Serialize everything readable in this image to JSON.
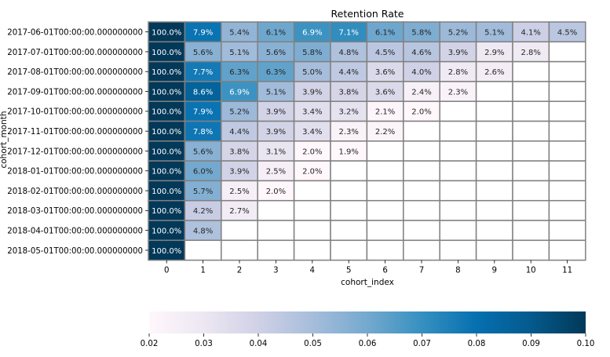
{
  "chart_data": {
    "type": "heatmap",
    "title": "Retention Rate",
    "xlabel": "cohort_index",
    "ylabel": "cohort_month",
    "x": [
      0,
      1,
      2,
      3,
      4,
      5,
      6,
      7,
      8,
      9,
      10,
      11
    ],
    "y": [
      "2017-06-01T00:00:00.000000000",
      "2017-07-01T00:00:00.000000000",
      "2017-08-01T00:00:00.000000000",
      "2017-09-01T00:00:00.000000000",
      "2017-10-01T00:00:00.000000000",
      "2017-11-01T00:00:00.000000000",
      "2017-12-01T00:00:00.000000000",
      "2018-01-01T00:00:00.000000000",
      "2018-02-01T00:00:00.000000000",
      "2018-03-01T00:00:00.000000000",
      "2018-04-01T00:00:00.000000000",
      "2018-05-01T00:00:00.000000000"
    ],
    "values": [
      [
        1.0,
        0.079,
        0.054,
        0.061,
        0.069,
        0.071,
        0.061,
        0.058,
        0.052,
        0.051,
        0.041,
        0.045
      ],
      [
        1.0,
        0.056,
        0.051,
        0.056,
        0.058,
        0.048,
        0.045,
        0.046,
        0.039,
        0.029,
        0.028,
        null
      ],
      [
        1.0,
        0.077,
        0.063,
        0.063,
        0.05,
        0.044,
        0.036,
        0.04,
        0.028,
        0.026,
        null,
        null
      ],
      [
        1.0,
        0.086,
        0.069,
        0.051,
        0.039,
        0.038,
        0.036,
        0.024,
        0.023,
        null,
        null,
        null
      ],
      [
        1.0,
        0.079,
        0.052,
        0.039,
        0.034,
        0.032,
        0.021,
        0.02,
        null,
        null,
        null,
        null
      ],
      [
        1.0,
        0.078,
        0.044,
        0.039,
        0.034,
        0.023,
        0.022,
        null,
        null,
        null,
        null,
        null
      ],
      [
        1.0,
        0.056,
        0.038,
        0.031,
        0.02,
        0.019,
        null,
        null,
        null,
        null,
        null,
        null
      ],
      [
        1.0,
        0.06,
        0.039,
        0.025,
        0.02,
        null,
        null,
        null,
        null,
        null,
        null,
        null
      ],
      [
        1.0,
        0.057,
        0.025,
        0.02,
        null,
        null,
        null,
        null,
        null,
        null,
        null,
        null
      ],
      [
        1.0,
        0.042,
        0.027,
        null,
        null,
        null,
        null,
        null,
        null,
        null,
        null,
        null
      ],
      [
        1.0,
        0.048,
        null,
        null,
        null,
        null,
        null,
        null,
        null,
        null,
        null,
        null
      ],
      [
        1.0,
        null,
        null,
        null,
        null,
        null,
        null,
        null,
        null,
        null,
        null,
        null
      ]
    ],
    "labels": [
      [
        "100.0%",
        "7.9%",
        "5.4%",
        "6.1%",
        "6.9%",
        "7.1%",
        "6.1%",
        "5.8%",
        "5.2%",
        "5.1%",
        "4.1%",
        "4.5%"
      ],
      [
        "100.0%",
        "5.6%",
        "5.1%",
        "5.6%",
        "5.8%",
        "4.8%",
        "4.5%",
        "4.6%",
        "3.9%",
        "2.9%",
        "2.8%",
        ""
      ],
      [
        "100.0%",
        "7.7%",
        "6.3%",
        "6.3%",
        "5.0%",
        "4.4%",
        "3.6%",
        "4.0%",
        "2.8%",
        "2.6%",
        "",
        ""
      ],
      [
        "100.0%",
        "8.6%",
        "6.9%",
        "5.1%",
        "3.9%",
        "3.8%",
        "3.6%",
        "2.4%",
        "2.3%",
        "",
        "",
        ""
      ],
      [
        "100.0%",
        "7.9%",
        "5.2%",
        "3.9%",
        "3.4%",
        "3.2%",
        "2.1%",
        "2.0%",
        "",
        "",
        "",
        ""
      ],
      [
        "100.0%",
        "7.8%",
        "4.4%",
        "3.9%",
        "3.4%",
        "2.3%",
        "2.2%",
        "",
        "",
        "",
        "",
        ""
      ],
      [
        "100.0%",
        "5.6%",
        "3.8%",
        "3.1%",
        "2.0%",
        "1.9%",
        "",
        "",
        "",
        "",
        "",
        ""
      ],
      [
        "100.0%",
        "6.0%",
        "3.9%",
        "2.5%",
        "2.0%",
        "",
        "",
        "",
        "",
        "",
        "",
        ""
      ],
      [
        "100.0%",
        "5.7%",
        "2.5%",
        "2.0%",
        "",
        "",
        "",
        "",
        "",
        "",
        "",
        ""
      ],
      [
        "100.0%",
        "4.2%",
        "2.7%",
        "",
        "",
        "",
        "",
        "",
        "",
        "",
        "",
        ""
      ],
      [
        "100.0%",
        "4.8%",
        "",
        "",
        "",
        "",
        "",
        "",
        "",
        "",
        "",
        ""
      ],
      [
        "100.0%",
        "",
        "",
        "",
        "",
        "",
        "",
        "",
        "",
        "",
        "",
        ""
      ]
    ],
    "colorbar": {
      "vmin": 0.02,
      "vmax": 0.1,
      "ticks": [
        "0.02",
        "0.03",
        "0.04",
        "0.05",
        "0.06",
        "0.07",
        "0.08",
        "0.09",
        "0.10"
      ],
      "orientation": "horizontal",
      "colormap": [
        "#fff7fb",
        "#ece7f2",
        "#d0d1e6",
        "#a6bddb",
        "#74a9cf",
        "#3690c0",
        "#0570b0",
        "#045a8d",
        "#023858"
      ]
    },
    "cell_border_color": "#808080",
    "grid": false
  }
}
